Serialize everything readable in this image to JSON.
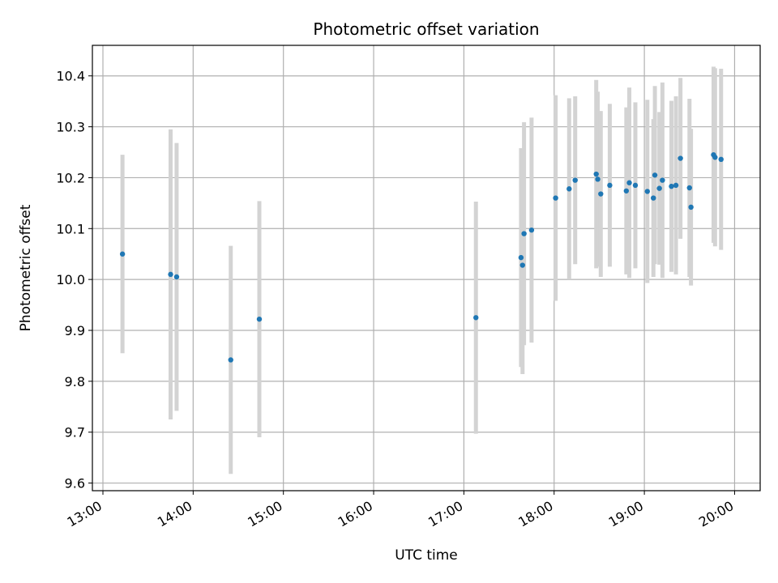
{
  "chart_data": {
    "type": "scatter",
    "title": "Photometric offset variation",
    "xlabel": "UTC time",
    "ylabel": "Photometric offset",
    "xlim": [
      "12:53",
      "20:17"
    ],
    "ylim": [
      9.585,
      10.46
    ],
    "x_ticks": [
      "13:00",
      "14:00",
      "15:00",
      "16:00",
      "17:00",
      "18:00",
      "19:00",
      "20:00"
    ],
    "y_ticks": [
      9.6,
      9.7,
      9.8,
      9.9,
      10.0,
      10.1,
      10.2,
      10.3,
      10.4
    ],
    "grid": true,
    "marker_color": "#1f77b4",
    "errorbar_color": "#d3d3d3",
    "points": [
      {
        "x": "13:13",
        "y": 10.05,
        "lo": 9.855,
        "hi": 10.245
      },
      {
        "x": "13:45",
        "y": 10.01,
        "lo": 9.725,
        "hi": 10.295
      },
      {
        "x": "13:49",
        "y": 10.005,
        "lo": 9.742,
        "hi": 10.268
      },
      {
        "x": "14:25",
        "y": 9.842,
        "lo": 9.618,
        "hi": 10.066
      },
      {
        "x": "14:44",
        "y": 9.922,
        "lo": 9.69,
        "hi": 10.154
      },
      {
        "x": "17:08",
        "y": 9.925,
        "lo": 9.697,
        "hi": 10.153
      },
      {
        "x": "17:38",
        "y": 10.043,
        "lo": 9.828,
        "hi": 10.258
      },
      {
        "x": "17:39",
        "y": 10.028,
        "lo": 9.814,
        "hi": 10.242
      },
      {
        "x": "17:40",
        "y": 10.09,
        "lo": 9.871,
        "hi": 10.309
      },
      {
        "x": "17:45",
        "y": 10.097,
        "lo": 9.876,
        "hi": 10.318
      },
      {
        "x": "18:01",
        "y": 10.16,
        "lo": 9.958,
        "hi": 10.362
      },
      {
        "x": "18:10",
        "y": 10.178,
        "lo": 10.0,
        "hi": 10.356
      },
      {
        "x": "18:14",
        "y": 10.195,
        "lo": 10.03,
        "hi": 10.36
      },
      {
        "x": "18:28",
        "y": 10.207,
        "lo": 10.022,
        "hi": 10.392
      },
      {
        "x": "18:29",
        "y": 10.197,
        "lo": 10.025,
        "hi": 10.369
      },
      {
        "x": "18:31",
        "y": 10.168,
        "lo": 10.005,
        "hi": 10.331
      },
      {
        "x": "18:37",
        "y": 10.185,
        "lo": 10.025,
        "hi": 10.345
      },
      {
        "x": "18:48",
        "y": 10.174,
        "lo": 10.01,
        "hi": 10.338
      },
      {
        "x": "18:50",
        "y": 10.19,
        "lo": 10.003,
        "hi": 10.377
      },
      {
        "x": "18:54",
        "y": 10.185,
        "lo": 10.022,
        "hi": 10.348
      },
      {
        "x": "19:02",
        "y": 10.173,
        "lo": 9.993,
        "hi": 10.353
      },
      {
        "x": "19:06",
        "y": 10.16,
        "lo": 10.005,
        "hi": 10.315
      },
      {
        "x": "19:07",
        "y": 10.205,
        "lo": 10.03,
        "hi": 10.38
      },
      {
        "x": "19:10",
        "y": 10.179,
        "lo": 10.029,
        "hi": 10.329
      },
      {
        "x": "19:12",
        "y": 10.195,
        "lo": 10.003,
        "hi": 10.387
      },
      {
        "x": "19:18",
        "y": 10.183,
        "lo": 10.015,
        "hi": 10.351
      },
      {
        "x": "19:21",
        "y": 10.185,
        "lo": 10.01,
        "hi": 10.36
      },
      {
        "x": "19:24",
        "y": 10.238,
        "lo": 10.08,
        "hi": 10.396
      },
      {
        "x": "19:30",
        "y": 10.18,
        "lo": 10.005,
        "hi": 10.355
      },
      {
        "x": "19:31",
        "y": 10.142,
        "lo": 9.988,
        "hi": 10.296
      },
      {
        "x": "19:46",
        "y": 10.245,
        "lo": 10.072,
        "hi": 10.418
      },
      {
        "x": "19:47",
        "y": 10.24,
        "lo": 10.065,
        "hi": 10.415
      },
      {
        "x": "19:51",
        "y": 10.236,
        "lo": 10.058,
        "hi": 10.414
      }
    ]
  }
}
